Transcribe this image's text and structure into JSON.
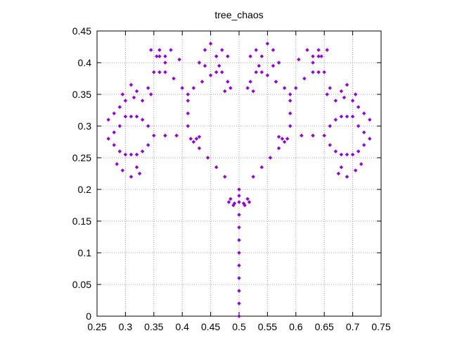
{
  "chart_data": {
    "type": "scatter",
    "title": "tree_chaos",
    "xlabel": "",
    "ylabel": "",
    "xlim": [
      0.25,
      0.75
    ],
    "ylim": [
      0,
      0.45
    ],
    "grid": true,
    "x_ticks": [
      0.25,
      0.3,
      0.35,
      0.4,
      0.45,
      0.5,
      0.55,
      0.6,
      0.65,
      0.7,
      0.75
    ],
    "x_tick_labels": [
      "0.25",
      "0.3",
      "0.35",
      "0.4",
      "0.45",
      "0.5",
      "0.55",
      "0.6",
      "0.65",
      "0.7",
      "0.75"
    ],
    "y_ticks": [
      0,
      0.05,
      0.1,
      0.15,
      0.2,
      0.25,
      0.3,
      0.35,
      0.4,
      0.45
    ],
    "y_tick_labels": [
      "0",
      "0.05",
      "0.1",
      "0.15",
      "0.2",
      "0.25",
      "0.3",
      "0.35",
      "0.4",
      "0.45"
    ],
    "marker_color": "#9400d3",
    "series": [
      {
        "points": [
          [
            0.5,
            0.0
          ],
          [
            0.5,
            0.02
          ],
          [
            0.5,
            0.04
          ],
          [
            0.5,
            0.06
          ],
          [
            0.5,
            0.08
          ],
          [
            0.5,
            0.1
          ],
          [
            0.5,
            0.12
          ],
          [
            0.5,
            0.14
          ],
          [
            0.5,
            0.16
          ],
          [
            0.5,
            0.18
          ],
          [
            0.5,
            0.2
          ],
          [
            0.485,
            0.185
          ],
          [
            0.492,
            0.178
          ],
          [
            0.5,
            0.19
          ],
          [
            0.508,
            0.178
          ],
          [
            0.515,
            0.185
          ],
          [
            0.49,
            0.175
          ],
          [
            0.51,
            0.175
          ],
          [
            0.482,
            0.18
          ],
          [
            0.518,
            0.18
          ],
          [
            0.475,
            0.22
          ],
          [
            0.46,
            0.235
          ],
          [
            0.445,
            0.25
          ],
          [
            0.43,
            0.265
          ],
          [
            0.42,
            0.275
          ],
          [
            0.525,
            0.22
          ],
          [
            0.54,
            0.235
          ],
          [
            0.555,
            0.25
          ],
          [
            0.57,
            0.265
          ],
          [
            0.58,
            0.275
          ],
          [
            0.415,
            0.28
          ],
          [
            0.425,
            0.28
          ],
          [
            0.43,
            0.283
          ],
          [
            0.576,
            0.28
          ],
          [
            0.585,
            0.28
          ],
          [
            0.57,
            0.283
          ],
          [
            0.41,
            0.3
          ],
          [
            0.41,
            0.32
          ],
          [
            0.41,
            0.34
          ],
          [
            0.41,
            0.35
          ],
          [
            0.59,
            0.3
          ],
          [
            0.59,
            0.32
          ],
          [
            0.59,
            0.34
          ],
          [
            0.59,
            0.35
          ],
          [
            0.39,
            0.285
          ],
          [
            0.37,
            0.285
          ],
          [
            0.35,
            0.285
          ],
          [
            0.61,
            0.285
          ],
          [
            0.63,
            0.285
          ],
          [
            0.65,
            0.285
          ],
          [
            0.42,
            0.36
          ],
          [
            0.435,
            0.37
          ],
          [
            0.45,
            0.38
          ],
          [
            0.46,
            0.385
          ],
          [
            0.47,
            0.385
          ],
          [
            0.58,
            0.36
          ],
          [
            0.565,
            0.37
          ],
          [
            0.55,
            0.38
          ],
          [
            0.54,
            0.385
          ],
          [
            0.53,
            0.385
          ],
          [
            0.4,
            0.36
          ],
          [
            0.385,
            0.375
          ],
          [
            0.37,
            0.385
          ],
          [
            0.36,
            0.385
          ],
          [
            0.35,
            0.385
          ],
          [
            0.6,
            0.36
          ],
          [
            0.615,
            0.375
          ],
          [
            0.63,
            0.385
          ],
          [
            0.64,
            0.385
          ],
          [
            0.65,
            0.385
          ],
          [
            0.34,
            0.3
          ],
          [
            0.33,
            0.31
          ],
          [
            0.32,
            0.315
          ],
          [
            0.31,
            0.315
          ],
          [
            0.3,
            0.315
          ],
          [
            0.66,
            0.3
          ],
          [
            0.67,
            0.31
          ],
          [
            0.68,
            0.315
          ],
          [
            0.69,
            0.315
          ],
          [
            0.7,
            0.315
          ],
          [
            0.34,
            0.27
          ],
          [
            0.33,
            0.26
          ],
          [
            0.32,
            0.255
          ],
          [
            0.31,
            0.255
          ],
          [
            0.3,
            0.255
          ],
          [
            0.66,
            0.27
          ],
          [
            0.67,
            0.26
          ],
          [
            0.68,
            0.255
          ],
          [
            0.69,
            0.255
          ],
          [
            0.7,
            0.255
          ],
          [
            0.355,
            0.41
          ],
          [
            0.345,
            0.42
          ],
          [
            0.36,
            0.42
          ],
          [
            0.37,
            0.41
          ],
          [
            0.38,
            0.42
          ],
          [
            0.645,
            0.41
          ],
          [
            0.655,
            0.42
          ],
          [
            0.64,
            0.42
          ],
          [
            0.63,
            0.41
          ],
          [
            0.62,
            0.42
          ],
          [
            0.44,
            0.42
          ],
          [
            0.45,
            0.43
          ],
          [
            0.46,
            0.41
          ],
          [
            0.47,
            0.42
          ],
          [
            0.48,
            0.41
          ],
          [
            0.56,
            0.42
          ],
          [
            0.55,
            0.43
          ],
          [
            0.54,
            0.41
          ],
          [
            0.53,
            0.42
          ],
          [
            0.52,
            0.41
          ],
          [
            0.34,
            0.36
          ],
          [
            0.345,
            0.35
          ],
          [
            0.33,
            0.34
          ],
          [
            0.32,
            0.355
          ],
          [
            0.315,
            0.345
          ],
          [
            0.66,
            0.36
          ],
          [
            0.655,
            0.35
          ],
          [
            0.67,
            0.34
          ],
          [
            0.68,
            0.355
          ],
          [
            0.685,
            0.345
          ],
          [
            0.48,
            0.37
          ],
          [
            0.485,
            0.36
          ],
          [
            0.475,
            0.355
          ],
          [
            0.52,
            0.37
          ],
          [
            0.515,
            0.36
          ],
          [
            0.525,
            0.355
          ],
          [
            0.29,
            0.33
          ],
          [
            0.28,
            0.32
          ],
          [
            0.27,
            0.31
          ],
          [
            0.28,
            0.29
          ],
          [
            0.29,
            0.3
          ],
          [
            0.71,
            0.33
          ],
          [
            0.72,
            0.32
          ],
          [
            0.73,
            0.31
          ],
          [
            0.72,
            0.29
          ],
          [
            0.71,
            0.3
          ],
          [
            0.27,
            0.28
          ],
          [
            0.28,
            0.27
          ],
          [
            0.29,
            0.26
          ],
          [
            0.285,
            0.24
          ],
          [
            0.295,
            0.23
          ],
          [
            0.73,
            0.28
          ],
          [
            0.72,
            0.27
          ],
          [
            0.71,
            0.26
          ],
          [
            0.715,
            0.24
          ],
          [
            0.705,
            0.23
          ],
          [
            0.31,
            0.22
          ],
          [
            0.32,
            0.235
          ],
          [
            0.325,
            0.225
          ],
          [
            0.69,
            0.22
          ],
          [
            0.68,
            0.235
          ],
          [
            0.675,
            0.225
          ],
          [
            0.3,
            0.34
          ],
          [
            0.295,
            0.35
          ],
          [
            0.31,
            0.365
          ],
          [
            0.7,
            0.34
          ],
          [
            0.705,
            0.35
          ],
          [
            0.69,
            0.365
          ],
          [
            0.395,
            0.405
          ],
          [
            0.37,
            0.4
          ],
          [
            0.36,
            0.41
          ],
          [
            0.605,
            0.405
          ],
          [
            0.63,
            0.4
          ],
          [
            0.64,
            0.41
          ],
          [
            0.43,
            0.4
          ],
          [
            0.44,
            0.395
          ],
          [
            0.465,
            0.395
          ],
          [
            0.57,
            0.4
          ],
          [
            0.56,
            0.395
          ],
          [
            0.535,
            0.395
          ]
        ]
      }
    ]
  }
}
